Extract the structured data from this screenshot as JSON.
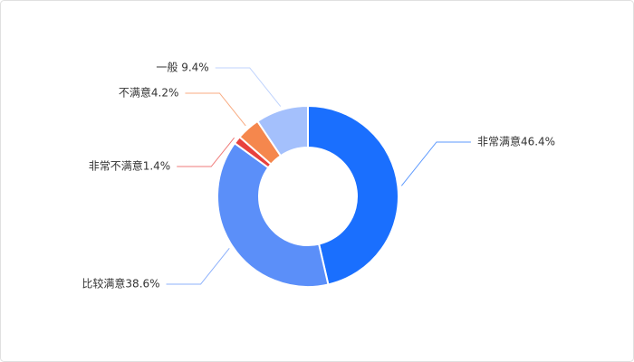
{
  "chart_data": {
    "type": "donut",
    "values": [
      46.4,
      38.6,
      1.4,
      4.2,
      9.4
    ],
    "value_labels": [
      "非常满意46.4%",
      "比较满意38.6%",
      "非常不满意1.4%",
      "不满意4.2%",
      "一般 9.4%"
    ],
    "colors": [
      "#1a6ffe",
      "#5b8ff9",
      "#e8413e",
      "#f5874d",
      "#a4c0fc"
    ]
  }
}
